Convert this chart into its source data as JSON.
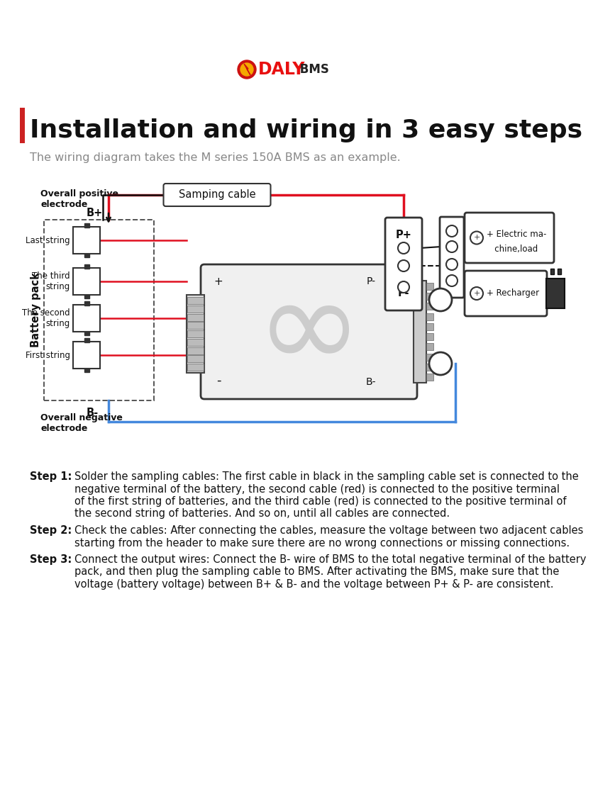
{
  "bg_color": "#ffffff",
  "title_main": "Installation and wiring in 3 easy steps",
  "subtitle": "The wiring diagram takes the M series 150A BMS as an example.",
  "red_color": "#e01020",
  "blue_color": "#4488dd",
  "black_color": "#111111",
  "daly_red": "#e81020",
  "title_bar_color": "#c0392b",
  "step1_bold": "Step 1:",
  "step1_rest": " Solder the sampling cables: The first cable in black in the sampling cable set is connected to the",
  "step1_l2": "negative terminal of the battery, the second cable (red) is connected to the positive terminal",
  "step1_l3": "of the first string of batteries, and the third cable (red) is connected to the positive terminal of",
  "step1_l4": "the second string of batteries. And so on, until all cables are connected.",
  "step2_bold": "Step 2:",
  "step2_rest": " Check the cables: After connecting the cables, measure the voltage between two adjacent cables",
  "step2_l2": "starting from the header to make sure there are no wrong connections or missing connections.",
  "step3_bold": "Step 3:",
  "step3_rest": " Connect the output wires: Connect the B- wire of BMS to the total negative terminal of the battery",
  "step3_l2": "pack, and then plug the sampling cable to BMS. After activating the BMS, make sure that the",
  "step3_l3": "voltage (battery voltage) between B+ & B- and the voltage between P+ & P- are consistent."
}
